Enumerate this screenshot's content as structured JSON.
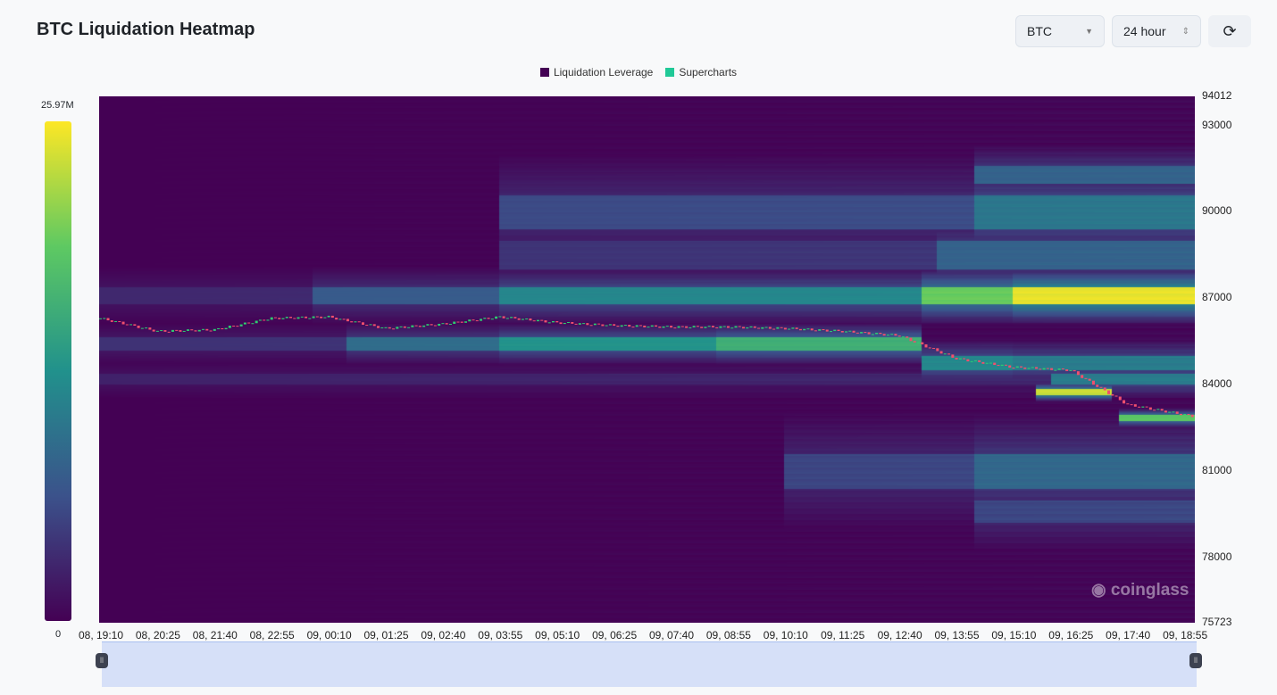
{
  "header": {
    "title": "BTC Liquidation Heatmap",
    "coin_select": "BTC",
    "range_select": "24 hour",
    "refresh_icon": "refresh-icon"
  },
  "legend": [
    {
      "label": "Liquidation Leverage",
      "color": "#440154"
    },
    {
      "label": "Supercharts",
      "color": "#20c997"
    }
  ],
  "colorbar": {
    "max_label": "25.97M",
    "min_label": "0",
    "colors": [
      "#440154",
      "#3b528b",
      "#21918c",
      "#5ec962",
      "#fde725"
    ]
  },
  "watermark": "coinglass",
  "chart_data": {
    "type": "heatmap",
    "title": "BTC Liquidation Heatmap",
    "ylim": [
      75723,
      94012
    ],
    "y_ticks": [
      "94012",
      "93000",
      "90000",
      "87000",
      "84000",
      "81000",
      "78000",
      "75723"
    ],
    "x_ticks": [
      "08, 19:10",
      "08, 20:25",
      "08, 21:40",
      "08, 22:55",
      "09, 00:10",
      "09, 01:25",
      "09, 02:40",
      "09, 03:55",
      "09, 05:10",
      "09, 06:25",
      "09, 07:40",
      "09, 08:55",
      "09, 10:10",
      "09, 11:25",
      "09, 12:40",
      "09, 13:55",
      "09, 15:10",
      "09, 16:25",
      "09, 17:40",
      "09, 18:55"
    ],
    "price_series": [
      86300,
      85850,
      85900,
      86300,
      86350,
      85950,
      86100,
      86350,
      86150,
      86050,
      86000,
      86000,
      85950,
      85850,
      85700,
      84900,
      84600,
      84500,
      83300,
      82950
    ],
    "liquidation_bands": [
      {
        "low": 86800,
        "high": 87400,
        "steps": [
          [
            0,
            0.12
          ],
          [
            280,
            0.28
          ],
          [
            525,
            0.45
          ],
          [
            1080,
            0.75
          ],
          [
            1200,
            0.95
          ]
        ]
      },
      {
        "low": 85200,
        "high": 85650,
        "steps": [
          [
            0,
            0.15
          ],
          [
            325,
            0.35
          ],
          [
            525,
            0.5
          ],
          [
            810,
            0.62
          ],
          [
            1080,
            0
          ]
        ]
      },
      {
        "low": 84500,
        "high": 85000,
        "steps": [
          [
            1080,
            0.45
          ],
          [
            1200,
            0.4
          ]
        ]
      },
      {
        "low": 89400,
        "high": 90600,
        "steps": [
          [
            525,
            0.22
          ],
          [
            1150,
            0.38
          ]
        ]
      },
      {
        "low": 88000,
        "high": 89000,
        "steps": [
          [
            525,
            0.15
          ],
          [
            1100,
            0.3
          ]
        ]
      },
      {
        "low": 91000,
        "high": 91600,
        "steps": [
          [
            1150,
            0.3
          ]
        ]
      },
      {
        "low": 80400,
        "high": 81600,
        "steps": [
          [
            900,
            0.2
          ],
          [
            1150,
            0.32
          ]
        ]
      },
      {
        "low": 83650,
        "high": 83850,
        "steps": [
          [
            1230,
            0.9
          ],
          [
            1330,
            0
          ]
        ]
      },
      {
        "low": 82750,
        "high": 82950,
        "steps": [
          [
            1340,
            0.72
          ]
        ]
      },
      {
        "low": 84000,
        "high": 84400,
        "steps": [
          [
            0,
            0.1
          ],
          [
            1250,
            0.4
          ]
        ]
      },
      {
        "low": 79200,
        "high": 80000,
        "steps": [
          [
            1150,
            0.2
          ]
        ]
      }
    ]
  }
}
